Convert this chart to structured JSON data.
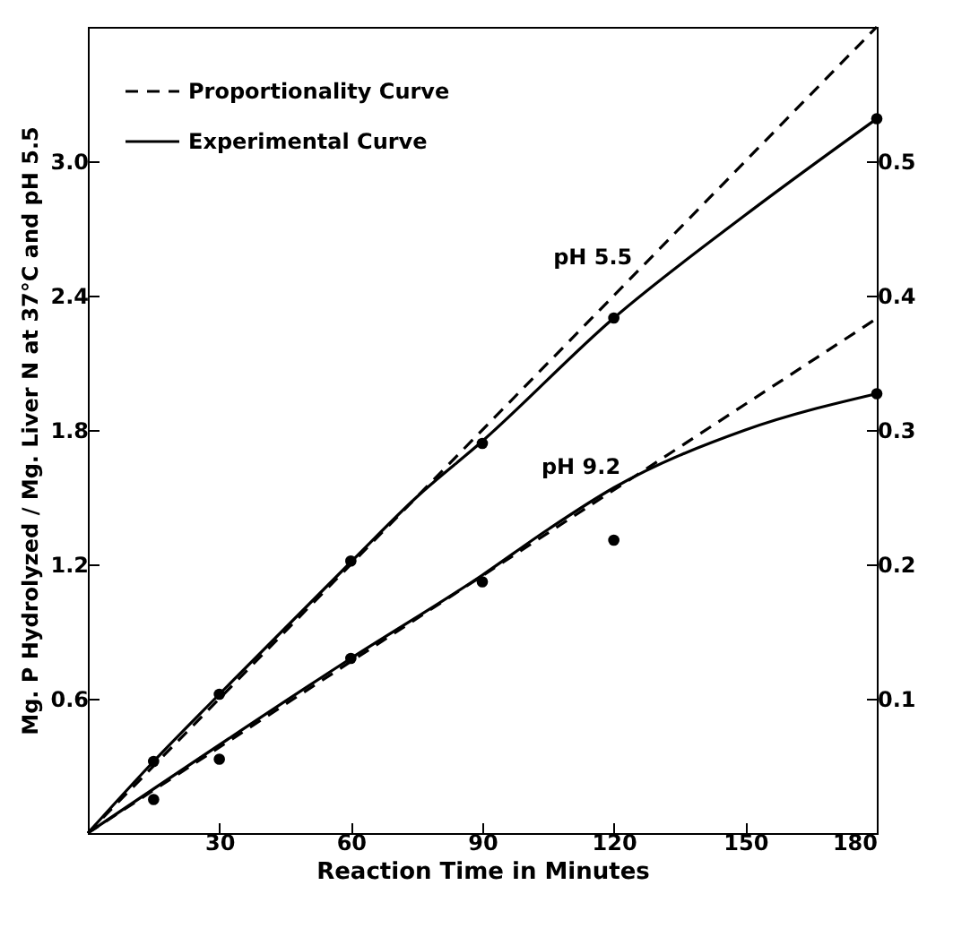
{
  "chart_data": {
    "type": "line",
    "xlabel": "Reaction Time in Minutes",
    "ylabel": "Mg. P Hydrolyzed / Mg. Liver N at 37°C and pH 5.5",
    "xlim": [
      0,
      180
    ],
    "xticks": [
      30,
      60,
      90,
      120,
      150,
      180
    ],
    "ylim": [
      0,
      3.6
    ],
    "yticks": [
      {
        "value": 0.6,
        "label": "0.6"
      },
      {
        "value": 1.2,
        "label": "1.2"
      },
      {
        "value": 1.8,
        "label": "1.8"
      },
      {
        "value": 2.4,
        "label": "2.4"
      },
      {
        "value": 3.0,
        "label": "3.0"
      }
    ],
    "y2lim": [
      0,
      0.6
    ],
    "y2ticks": [
      0.1,
      0.2,
      0.3,
      0.4,
      0.5
    ],
    "grid": false,
    "legend": "top left",
    "series": [
      {
        "name": "Proportionality Curve",
        "line_style": "dashed",
        "marker": "none",
        "color": "#000000",
        "x": [
          0,
          180
        ],
        "values": [
          0,
          3.6
        ]
      },
      {
        "name": "Experimental Curve",
        "line_style": "solid",
        "marker": "none",
        "color": "#000000",
        "x": [
          0,
          15,
          30,
          60,
          75,
          90,
          120,
          150,
          180
        ],
        "values": [
          0,
          0.32,
          0.62,
          1.21,
          1.5,
          1.75,
          2.3,
          2.76,
          3.19
        ]
      },
      {
        "type": "scatter",
        "marker": "circle",
        "color": "#000000",
        "x": [
          15,
          30,
          60,
          90,
          120,
          180
        ],
        "values": [
          0.32,
          0.62,
          1.215,
          1.74,
          2.3,
          3.19
        ]
      },
      {
        "line_style": "dashed",
        "marker": "none",
        "color": "#000000",
        "axis": "y2",
        "x": [
          0,
          180
        ],
        "values": [
          0,
          0.383
        ]
      },
      {
        "line_style": "solid",
        "marker": "none",
        "color": "#000000",
        "axis": "y2",
        "x": [
          0,
          60,
          90,
          105,
          120,
          150,
          180
        ],
        "values": [
          0,
          0.13,
          0.192,
          0.226,
          0.257,
          0.3,
          0.327
        ]
      },
      {
        "type": "scatter",
        "marker": "circle",
        "color": "#000000",
        "axis": "y2",
        "x": [
          15,
          30,
          60,
          90,
          120,
          180
        ],
        "values": [
          0.025,
          0.055,
          0.13,
          0.187,
          0.218,
          0.327
        ]
      }
    ],
    "annotations": [
      "pH 5.5",
      "pH 9.2"
    ]
  }
}
